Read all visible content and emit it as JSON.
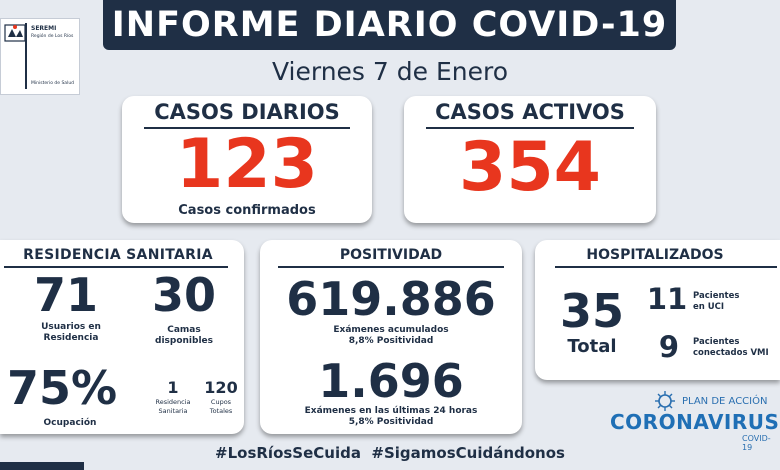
{
  "logo": {
    "org": "SEREMI",
    "region": "Región de Los Ríos",
    "ministry": "Ministerio de Salud"
  },
  "header": {
    "title": "INFORME DIARIO COVID-19",
    "date": "Viernes 7 de Enero"
  },
  "casos_diarios": {
    "title": "CASOS DIARIOS",
    "value": "123",
    "caption": "Casos confirmados"
  },
  "casos_activos": {
    "title": "CASOS ACTIVOS",
    "value": "354"
  },
  "residencia": {
    "title": "RESIDENCIA SANITARIA",
    "usuarios_value": "71",
    "usuarios_label_1": "Usuarios en",
    "usuarios_label_2": "Residencia",
    "camas_value": "30",
    "camas_label_1": "Camas",
    "camas_label_2": "disponibles",
    "ocupacion_value": "75%",
    "ocupacion_label": "Ocupación",
    "residencias_value": "1",
    "residencias_label_1": "Residencia",
    "residencias_label_2": "Sanitaria",
    "cupos_value": "120",
    "cupos_label_1": "Cupos",
    "cupos_label_2": "Totales"
  },
  "positividad": {
    "title": "POSITIVIDAD",
    "acumulados_value": "619.886",
    "acumulados_label_1": "Exámenes acumulados",
    "acumulados_label_2": "8,8% Positividad",
    "ultimas_value": "1.696",
    "ultimas_label_1": "Exámenes en las últimas 24 horas",
    "ultimas_label_2": "5,8% Positividad"
  },
  "hospitalizados": {
    "title": "HOSPITALIZADOS",
    "total_value": "35",
    "total_label": "Total",
    "uci_value": "11",
    "uci_label_1": "Pacientes",
    "uci_label_2": "en UCI",
    "vmi_value": "9",
    "vmi_label_1": "Pacientes",
    "vmi_label_2": "conectados VMI"
  },
  "campaign": {
    "plan": "PLAN DE ACCIÓN",
    "name": "CORONAVIRUS",
    "sub": "COVID-19"
  },
  "hashtags": "#LosRíosSeCuida  #SigamosCuidándonos",
  "colors": {
    "navy": "#1f2f45",
    "red": "#e8361e",
    "background": "#e6eaf0",
    "blue": "#2a6fb0"
  }
}
